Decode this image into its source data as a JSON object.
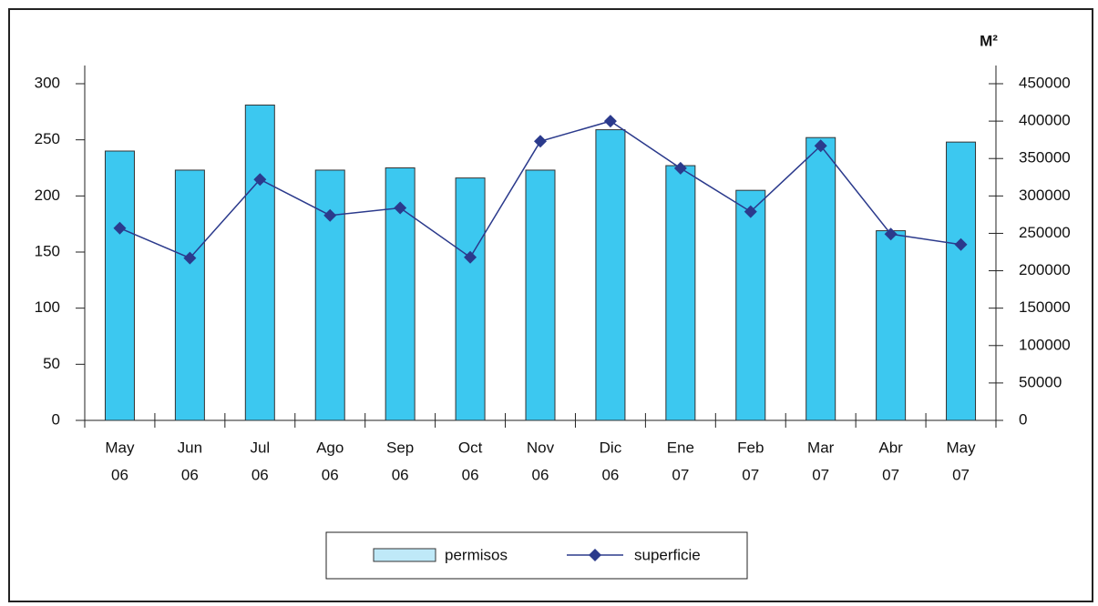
{
  "chart_data": {
    "type": "bar-line",
    "y2_label": "M²",
    "categories": [
      [
        "May",
        "06"
      ],
      [
        "Jun",
        "06"
      ],
      [
        "Jul",
        "06"
      ],
      [
        "Ago",
        "06"
      ],
      [
        "Sep",
        "06"
      ],
      [
        "Oct",
        "06"
      ],
      [
        "Nov",
        "06"
      ],
      [
        "Dic",
        "06"
      ],
      [
        "Ene",
        "07"
      ],
      [
        "Feb",
        "07"
      ],
      [
        "Mar",
        "07"
      ],
      [
        "Abr",
        "07"
      ],
      [
        "May",
        "07"
      ]
    ],
    "series": [
      {
        "name": "permisos",
        "type": "bar",
        "color": "#3cc8f0",
        "values": [
          240,
          223,
          281,
          223,
          225,
          216,
          223,
          259,
          227,
          205,
          252,
          169,
          248
        ]
      },
      {
        "name": "superficie",
        "type": "line",
        "axis": "y2",
        "color": "#2b3a8c",
        "values": [
          257000,
          217000,
          322000,
          274000,
          284000,
          218000,
          373000,
          400000,
          337000,
          279000,
          367000,
          249000,
          235000
        ]
      }
    ],
    "ylim": [
      0,
      300
    ],
    "yticks": [
      0,
      50,
      100,
      150,
      200,
      250,
      300
    ],
    "y2lim": [
      0,
      450000
    ],
    "y2ticks": [
      0,
      50000,
      100000,
      150000,
      200000,
      250000,
      300000,
      350000,
      400000,
      450000
    ],
    "grid": false,
    "legend": "bottom"
  }
}
